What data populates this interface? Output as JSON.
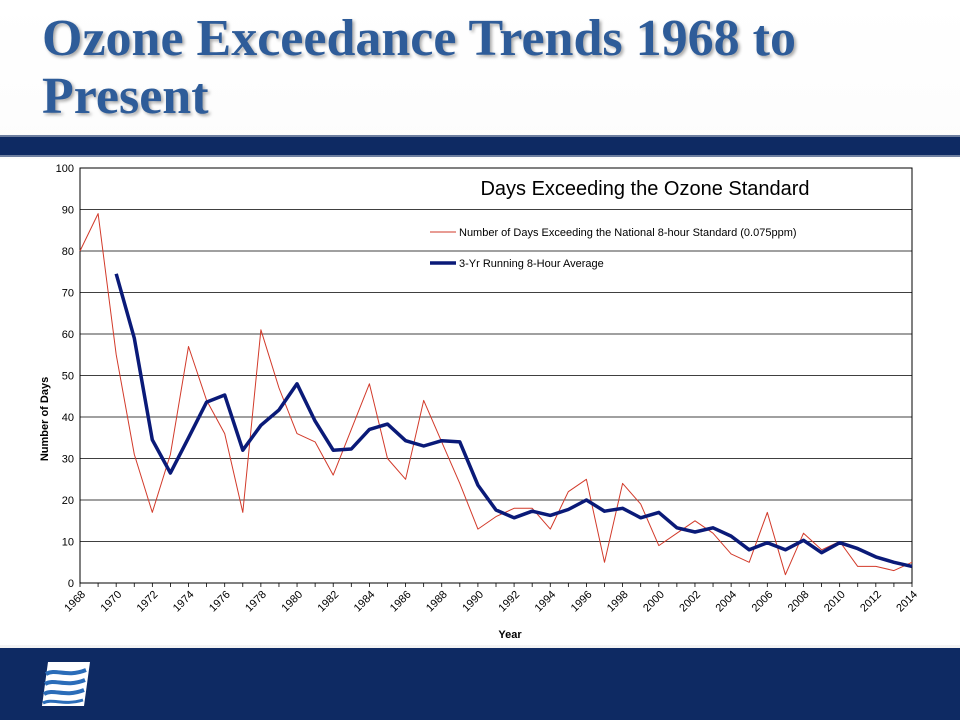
{
  "slide": {
    "title": "Ozone Exceedance Trends 1968 to Present"
  },
  "colors": {
    "title": "#2e5c99",
    "bars": "#0e2a63",
    "series_daily": "#d23a2a",
    "series_avg": "#0a1a78"
  },
  "logo": {
    "icon": "waves-logo-icon"
  },
  "chart_data": {
    "type": "line",
    "title": "Days Exceeding the Ozone Standard",
    "xlabel": "Year",
    "ylabel": "Number of Days",
    "ylim": [
      0,
      100
    ],
    "yticks": [
      0,
      10,
      20,
      30,
      40,
      50,
      60,
      70,
      80,
      90,
      100
    ],
    "xlim": [
      1968,
      2014
    ],
    "xticks": [
      "1968",
      "1970",
      "1972",
      "1974",
      "1976",
      "1978",
      "1980",
      "1982",
      "1984",
      "1986",
      "1988",
      "1990",
      "1992",
      "1994",
      "1996",
      "1998",
      "2000",
      "2002",
      "2004",
      "2006",
      "2008",
      "2010",
      "2012",
      "2014"
    ],
    "grid": "horizontal",
    "legend": "top-right",
    "series": [
      {
        "name": "Number of Days Exceeding the National 8-hour Standard (0.075ppm)",
        "style": "thin",
        "x": [
          1968,
          1969,
          1970,
          1971,
          1972,
          1973,
          1974,
          1975,
          1976,
          1977,
          1978,
          1979,
          1980,
          1981,
          1982,
          1983,
          1984,
          1985,
          1986,
          1987,
          1988,
          1989,
          1990,
          1991,
          1992,
          1993,
          1994,
          1995,
          1996,
          1997,
          1998,
          1999,
          2000,
          2001,
          2002,
          2003,
          2004,
          2005,
          2006,
          2007,
          2008,
          2009,
          2010,
          2011,
          2012,
          2013,
          2014
        ],
        "values": [
          80,
          89,
          55,
          31,
          17,
          31,
          57,
          44,
          36,
          17,
          61,
          47,
          36,
          34,
          26,
          37,
          48,
          30,
          25,
          44,
          34,
          24,
          13,
          16,
          18,
          18,
          13,
          22,
          25,
          5,
          24,
          19,
          9,
          12,
          15,
          12,
          7,
          5,
          17,
          2,
          12,
          8,
          10,
          4,
          4,
          3,
          5
        ]
      },
      {
        "name": "3-Yr Running 8-Hour Average",
        "style": "thick",
        "x": [
          1970,
          1971,
          1972,
          1973,
          1974,
          1975,
          1976,
          1977,
          1978,
          1979,
          1980,
          1981,
          1982,
          1983,
          1984,
          1985,
          1986,
          1987,
          1988,
          1989,
          1990,
          1991,
          1992,
          1993,
          1994,
          1995,
          1996,
          1997,
          1998,
          1999,
          2000,
          2001,
          2002,
          2003,
          2004,
          2005,
          2006,
          2007,
          2008,
          2009,
          2010,
          2011,
          2012,
          2013,
          2014
        ],
        "values": [
          74.5,
          59,
          34.5,
          26.5,
          35,
          43.6,
          45.3,
          32,
          38,
          41.7,
          48,
          39,
          32,
          32.3,
          37,
          38.3,
          34.3,
          33,
          34.3,
          34,
          23.6,
          17.6,
          15.7,
          17.3,
          16.3,
          17.7,
          20,
          17.3,
          18,
          15.7,
          17,
          13.3,
          12.3,
          13.3,
          11.3,
          8,
          9.7,
          8,
          10.3,
          7.3,
          9.7,
          8.3,
          6.3,
          5,
          4
        ]
      }
    ]
  }
}
